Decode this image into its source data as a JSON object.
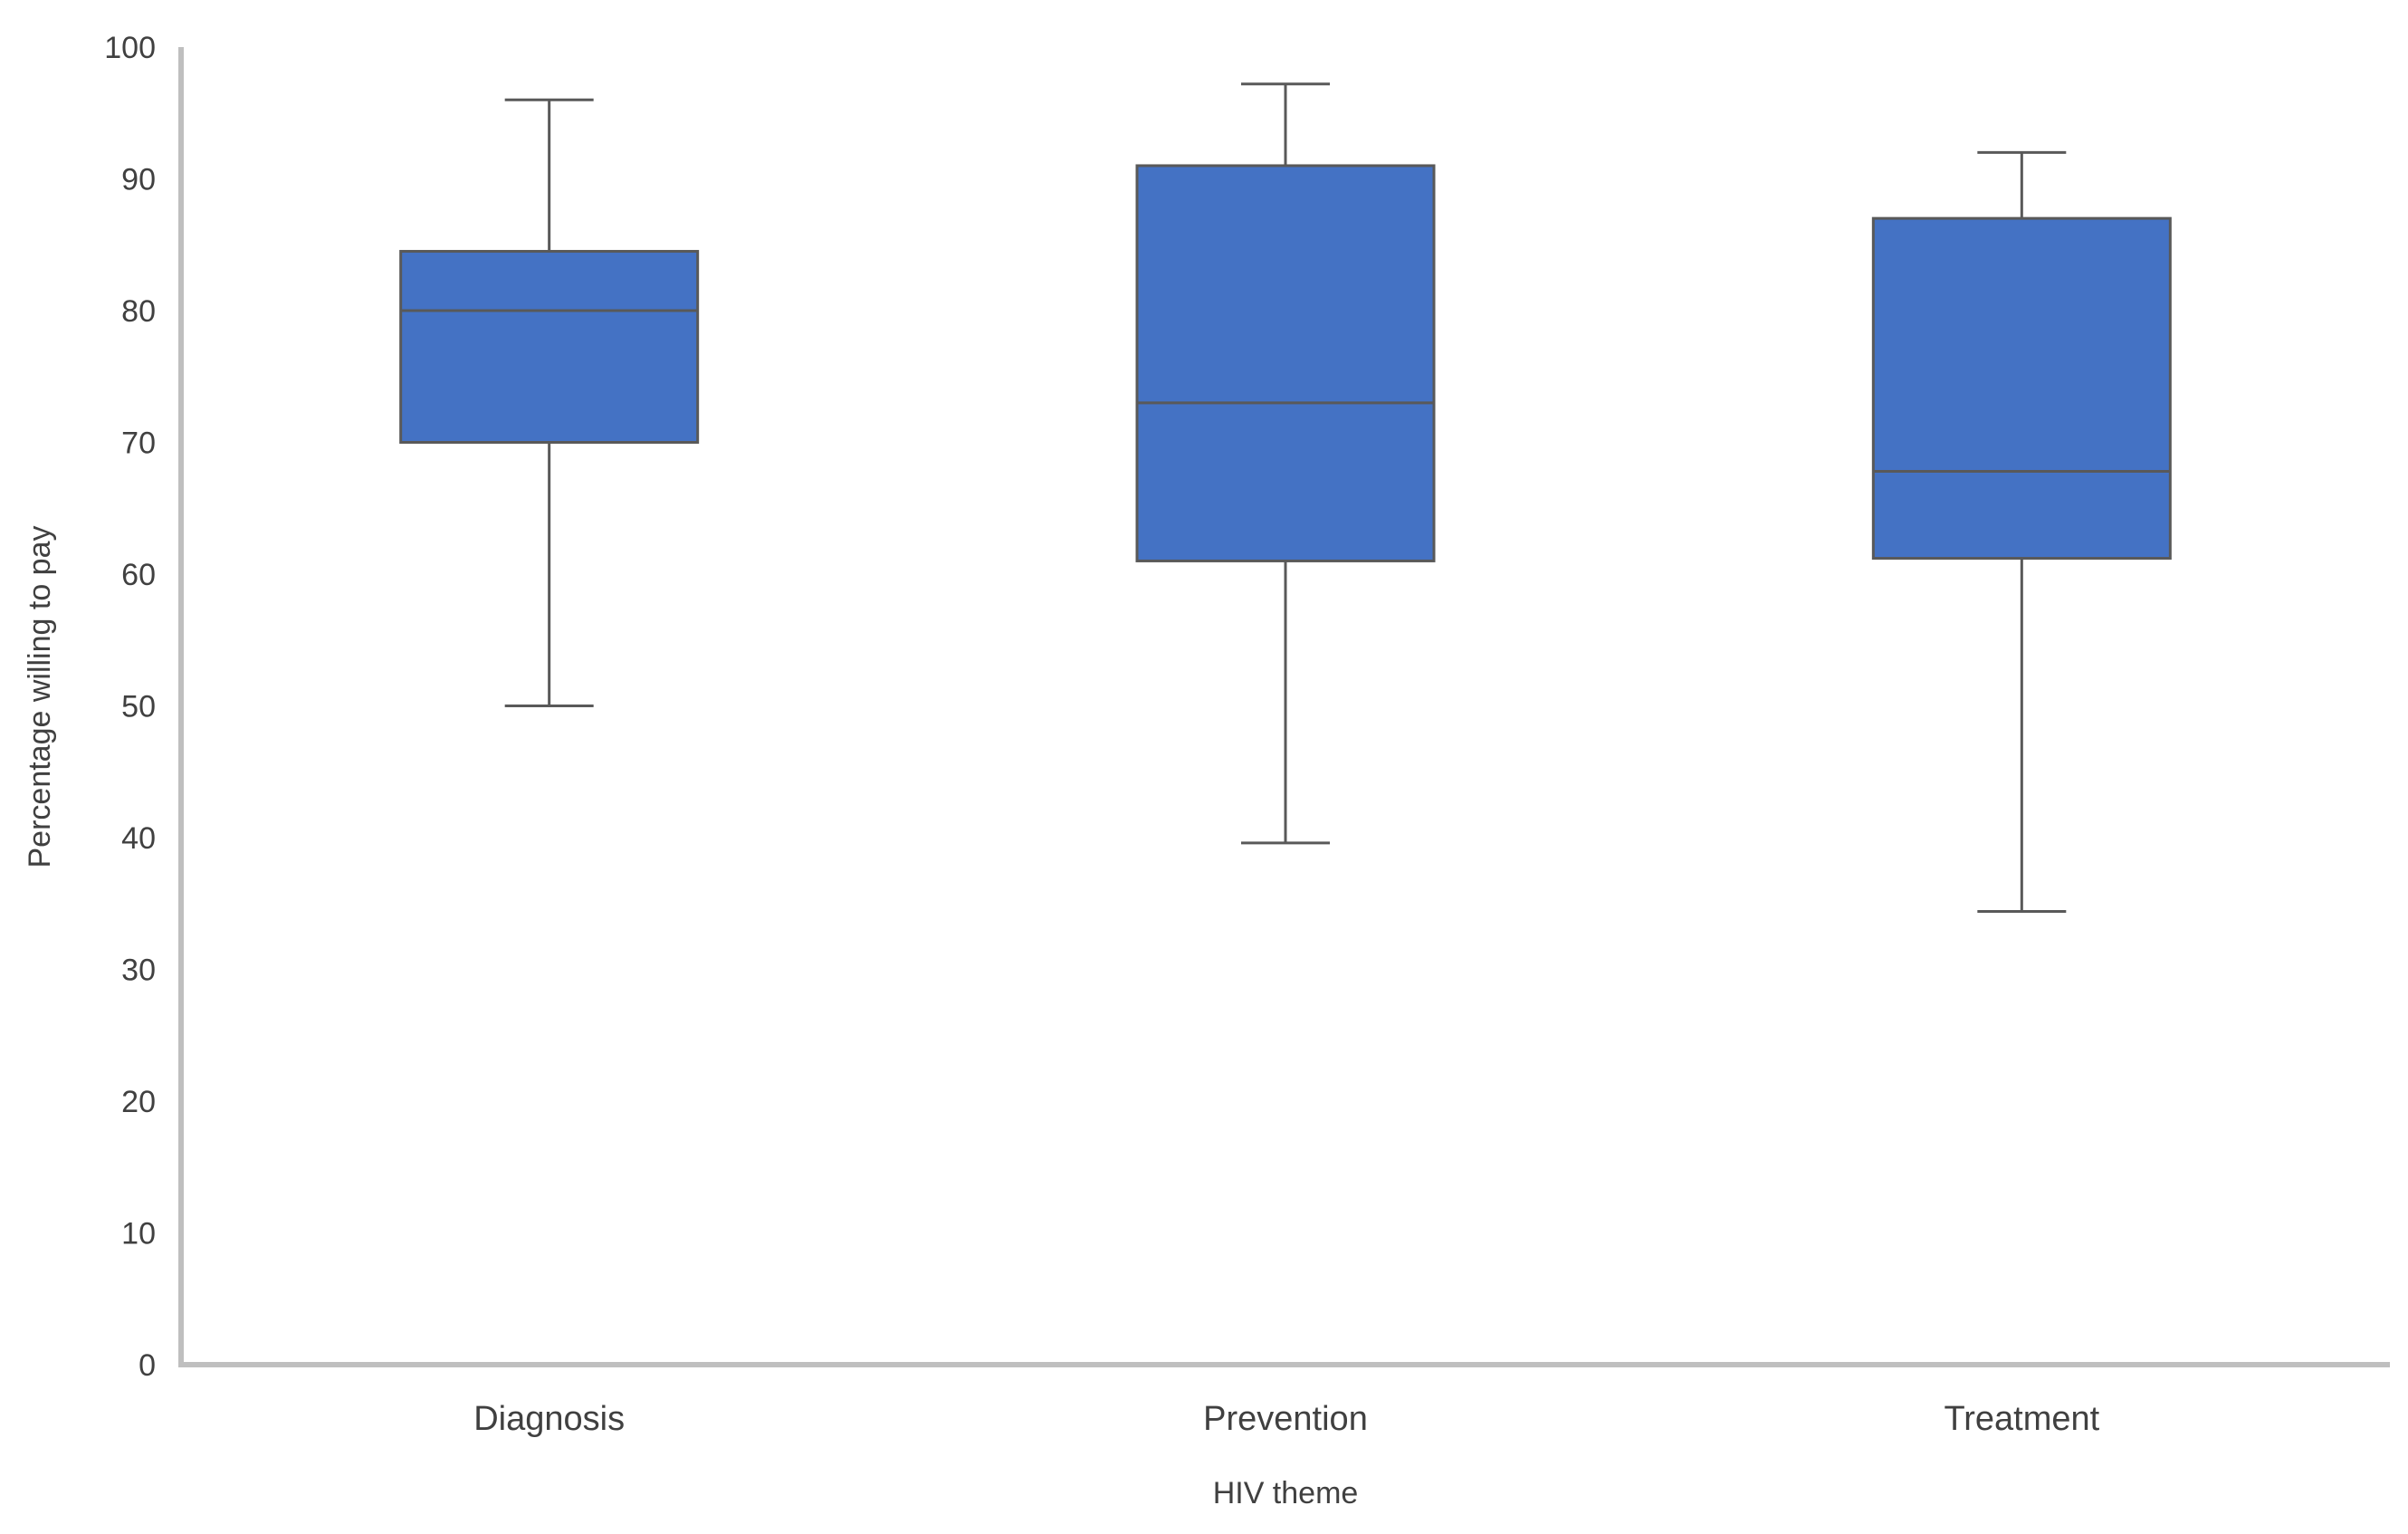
{
  "chart_data": {
    "type": "boxplot",
    "title": "",
    "xlabel": "HIV theme",
    "ylabel": "Percentage willing to pay",
    "ylim": [
      0,
      100
    ],
    "yticks": [
      0,
      10,
      20,
      30,
      40,
      50,
      60,
      70,
      80,
      90,
      100
    ],
    "grid": false,
    "legend": "none",
    "categories": [
      "Diagnosis",
      "Prevention",
      "Treatment"
    ],
    "boxes": [
      {
        "category": "Diagnosis",
        "min": 50,
        "q1": 70,
        "median": 80,
        "q3": 84.5,
        "max": 96
      },
      {
        "category": "Prevention",
        "min": 39.6,
        "q1": 61,
        "median": 73,
        "q3": 91,
        "max": 97.2
      },
      {
        "category": "Treatment",
        "min": 34.4,
        "q1": 61.2,
        "median": 67.8,
        "q3": 87,
        "max": 92
      }
    ],
    "colors": {
      "box_fill": "#4472C4",
      "box_stroke": "#595959",
      "axis": "#BFBFBF",
      "text": "#404040"
    }
  }
}
